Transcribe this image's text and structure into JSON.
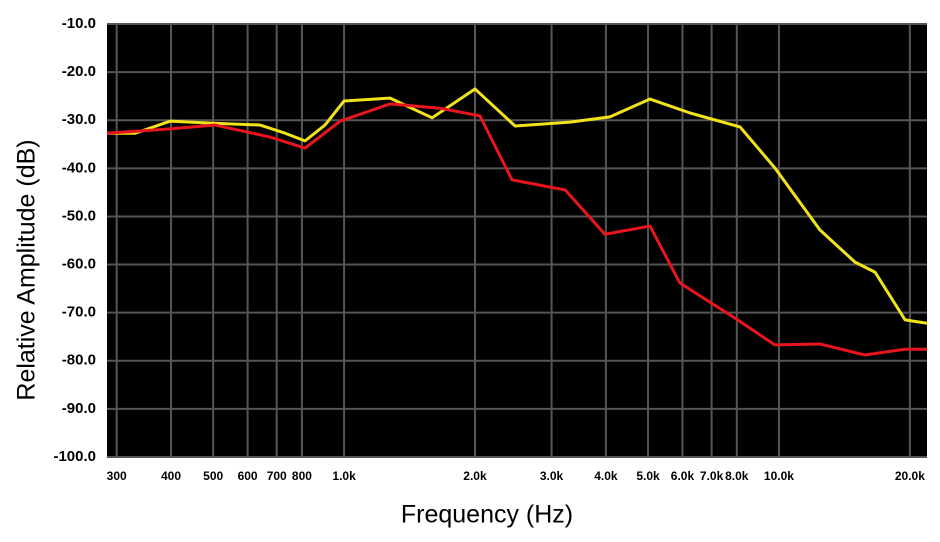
{
  "chart_data": {
    "type": "line",
    "x_label": "Frequency (Hz)",
    "y_label": "Relative Amplitude (dB)",
    "xscale": "log",
    "grid": true,
    "background": "#000000",
    "xlim": [
      285,
      21900
    ],
    "ylim": [
      -100,
      -10
    ],
    "xticks": [
      300,
      400,
      500,
      600,
      700,
      800,
      {
        "value": 1000,
        "label": "1.0k"
      },
      {
        "value": 2000,
        "label": "2.0k"
      },
      {
        "value": 3000,
        "label": "3.0k"
      },
      {
        "value": 4000,
        "label": "4.0k"
      },
      {
        "value": 5000,
        "label": "5.0k"
      },
      {
        "value": 6000,
        "label": "6.0k"
      },
      {
        "value": 7000,
        "label": "7.0k"
      },
      {
        "value": 8000,
        "label": "8.0k"
      },
      {
        "value": 10000,
        "label": "10.0k"
      },
      {
        "value": 20000,
        "label": "20.0k"
      }
    ],
    "yticks": [
      {
        "value": -10,
        "label": "-10.0"
      },
      {
        "value": -20,
        "label": "-20.0"
      },
      {
        "value": -30,
        "label": "-30.0"
      },
      {
        "value": -40,
        "label": "-40.0"
      },
      {
        "value": -50,
        "label": "-50.0"
      },
      {
        "value": -60,
        "label": "-60.0"
      },
      {
        "value": -70,
        "label": "-70.0"
      },
      {
        "value": -80,
        "label": "-80.0"
      },
      {
        "value": -90,
        "label": "-90.0"
      },
      {
        "value": -100,
        "label": "-100.0"
      }
    ],
    "series": [
      {
        "color": "#f2e21a",
        "x": [
          285,
          331,
          398,
          492,
          641,
          732,
          813,
          904,
          1000,
          1276,
          1594,
          2000,
          2473,
          3308,
          4087,
          5052,
          6247,
          8138,
          9784,
          12420,
          14960,
          16640,
          19500,
          21900
        ],
        "values": [
          -32.7,
          -32.7,
          -30.2,
          -30.6,
          -31.0,
          -32.7,
          -34.3,
          -31.0,
          -26.0,
          -25.4,
          -29.5,
          -23.5,
          -31.2,
          -30.4,
          -29.3,
          -25.6,
          -28.5,
          -31.4,
          -39.9,
          -52.8,
          -59.5,
          -61.6,
          -71.5,
          -72.2
        ]
      },
      {
        "color": "#e8141e",
        "x": [
          285,
          398,
          505,
          676,
          813,
          979,
          1276,
          1661,
          2053,
          2434,
          3226,
          3979,
          5052,
          5915,
          6587,
          7915,
          9784,
          12420,
          15750,
          19500,
          21900
        ],
        "values": [
          -32.7,
          -31.8,
          -31.0,
          -33.5,
          -35.8,
          -30.2,
          -26.6,
          -27.5,
          -29.1,
          -42.4,
          -44.5,
          -53.7,
          -52.0,
          -63.8,
          -66.5,
          -71.1,
          -76.7,
          -76.5,
          -78.8,
          -77.6,
          -77.6
        ]
      }
    ]
  }
}
